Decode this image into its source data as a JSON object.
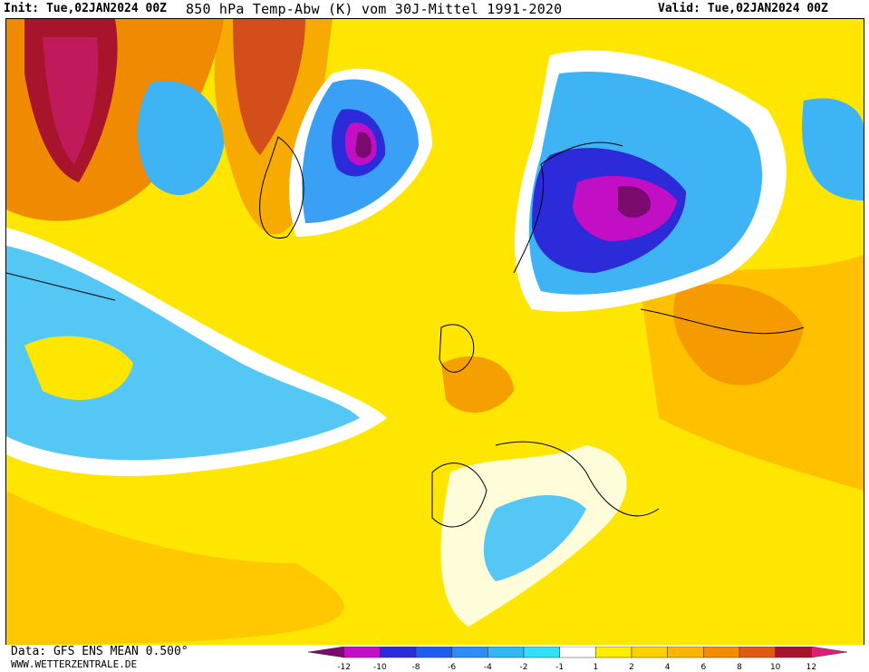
{
  "header": {
    "init": "Init: Tue,02JAN2024 00Z",
    "title": "850 hPa Temp-Abw (K) vom 30J-Mittel 1991-2020",
    "valid": "Valid: Tue,02JAN2024 00Z"
  },
  "footer": {
    "data_source": "Data: GFS ENS MEAN 0.500°",
    "website": "WWW.WETTERZENTRALE.DE"
  },
  "legend": {
    "tick_labels": [
      "-12",
      "-10",
      "-8",
      "-6",
      "-4",
      "-2",
      "-1",
      "1",
      "2",
      "4",
      "6",
      "8",
      "10",
      "12"
    ],
    "colors": [
      "#7a0a6e",
      "#c20ec4",
      "#2b2bd9",
      "#1f5cf0",
      "#2e8cf5",
      "#33b6f5",
      "#33e0f5",
      "#ffffff",
      "#ffee00",
      "#ffd000",
      "#ffb400",
      "#f58c00",
      "#e05a14",
      "#a8142c",
      "#e01e78"
    ]
  },
  "colors": {
    "background_warm": "#ffd900",
    "coast": "#000000"
  }
}
